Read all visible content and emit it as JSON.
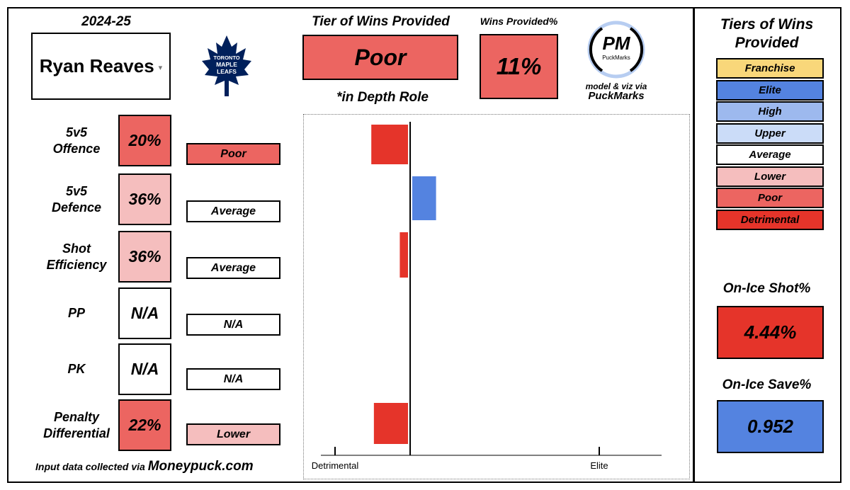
{
  "colors": {
    "franchise": "#f9d77a",
    "elite": "#5483e0",
    "high": "#9db9ee",
    "upper": "#cbdcf8",
    "average": "#ffffff",
    "lower": "#f5bebe",
    "poor": "#ec6561",
    "detrimental": "#e5342a",
    "leafs_blue": "#00205b"
  },
  "header": {
    "season": "2024-25",
    "player_name": "Ryan Reaves",
    "team_logo_icon": "toronto-maple-leafs-logo",
    "team_logo_text": [
      "TORONTO",
      "MAPLE",
      "LEAFS"
    ],
    "tier_title": "Tier of Wins Provided",
    "tier_value": "Poor",
    "depth_note": "*in Depth Role",
    "wp_title": "Wins Provided%",
    "wp_value": "11%",
    "pm_logo_letters": "PM",
    "pm_logo_name": "PuckMarks",
    "credit_line": "model & viz via",
    "credit_name": "PuckMarks"
  },
  "metrics": [
    {
      "label": "5v5\nOffence",
      "pct": "20%",
      "tier": "Poor"
    },
    {
      "label": "5v5\nDefence",
      "pct": "36%",
      "tier": "Average"
    },
    {
      "label": "Shot\nEfficiency",
      "pct": "36%",
      "tier": "Average"
    },
    {
      "label": "PP",
      "pct": "N/A",
      "tier": "N/A"
    },
    {
      "label": "PK",
      "pct": "N/A",
      "tier": "N/A"
    },
    {
      "label": "Penalty\nDifferential",
      "pct": "22%",
      "tier": "Lower"
    }
  ],
  "footer": {
    "prefix": "Input data collected via",
    "site": "Moneypuck.com"
  },
  "legend": {
    "title": "Tiers of Wins Provided",
    "items": [
      "Franchise",
      "Elite",
      "High",
      "Upper",
      "Average",
      "Lower",
      "Poor",
      "Detrimental"
    ]
  },
  "side": {
    "shot_title": "On-Ice Shot%",
    "shot_value": "4.44%",
    "save_title": "On-Ice Save%",
    "save_value": "0.952"
  },
  "chart_data": {
    "type": "bar",
    "orientation": "horizontal",
    "categories": [
      "5v5 Offence",
      "5v5 Defence",
      "Shot Efficiency",
      "PP",
      "PK",
      "Penalty Differential"
    ],
    "values": [
      -1.5,
      1.0,
      -0.4,
      null,
      null,
      -1.4
    ],
    "bar_colors": [
      "#e5342a",
      "#5483e0",
      "#e5342a",
      null,
      null,
      "#e5342a"
    ],
    "xlim": [
      -2.9,
      7.3
    ],
    "zero": 0,
    "axis_ticks": [
      {
        "value": -2.9,
        "label": "Detrimental"
      },
      {
        "value": 7.3,
        "label": "Elite"
      }
    ],
    "grid": false
  }
}
